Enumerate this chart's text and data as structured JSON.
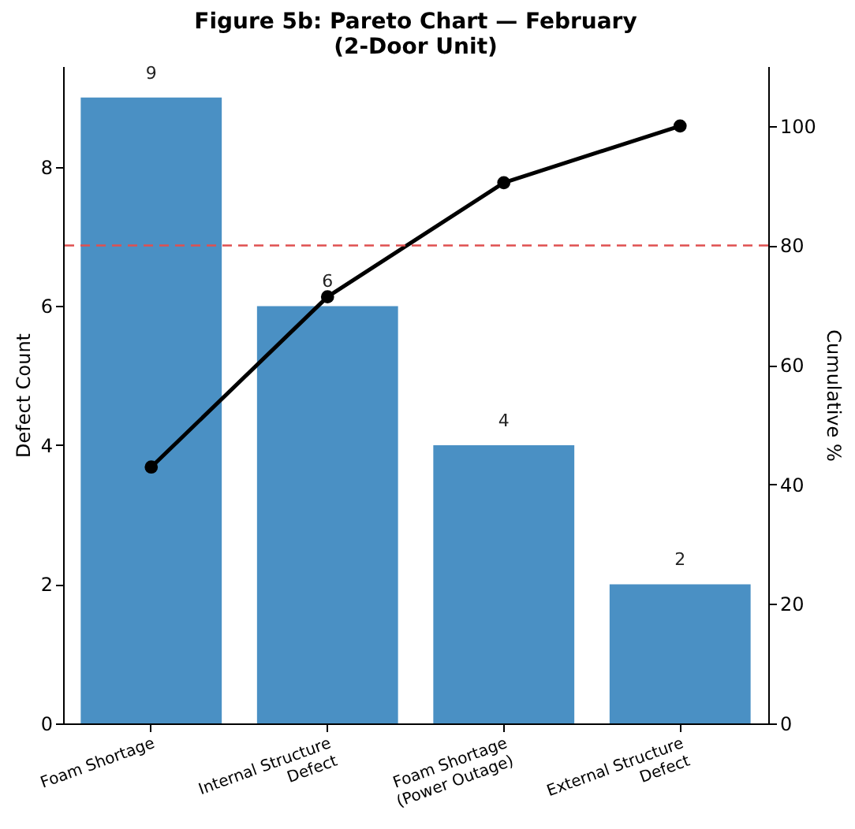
{
  "chart_data": {
    "type": "bar",
    "title": "Figure 5b: Pareto Chart — February\n(2-Door Unit)",
    "ylabel": "Defect Count",
    "y2label": "Cumulative %",
    "categories": [
      "Foam Shortage",
      "Internal Structure\nDefect",
      "Foam Shortage\n(Power Outage)",
      "External Structure\nDefect"
    ],
    "series": [
      {
        "color": "#4a90c4",
        "values": [
          9,
          6,
          4,
          2
        ],
        "value_labels": [
          "9",
          "6",
          "4",
          "2"
        ]
      },
      {
        "type": "line",
        "axis": "y2",
        "color": "#000000",
        "marker": "circle",
        "values": [
          42.9,
          71.4,
          90.5,
          100
        ]
      }
    ],
    "ylim": [
      0,
      9.45
    ],
    "yticks": [
      0,
      2,
      4,
      6,
      8
    ],
    "y2lim": [
      0,
      110
    ],
    "y2ticks": [
      0,
      20,
      40,
      60,
      80,
      100
    ],
    "ref_lines": [
      {
        "axis": "y2",
        "value": 80,
        "color": "#e05050",
        "line_style": "dashed"
      }
    ]
  }
}
